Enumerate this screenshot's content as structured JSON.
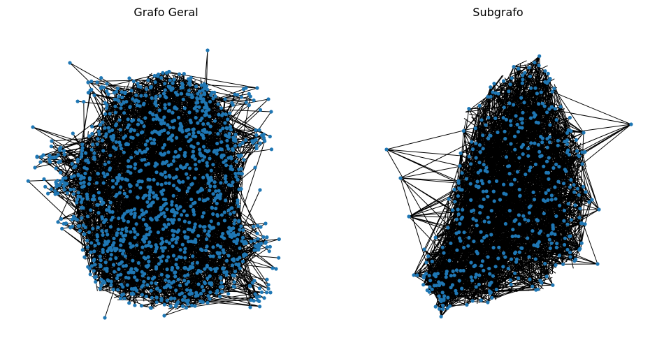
{
  "figure": {
    "left_title": "Grafo Geral",
    "right_title": "Subgrafo"
  },
  "style": {
    "node_color": "#1f77b4",
    "edge_color": "#000000",
    "background": "#ffffff"
  },
  "graphs": [
    {
      "title": "Grafo Geral",
      "approx_node_count": 1400,
      "approx_edge_count": 5000
    },
    {
      "title": "Subgrafo",
      "approx_node_count": 450,
      "approx_edge_count": 2600
    }
  ]
}
